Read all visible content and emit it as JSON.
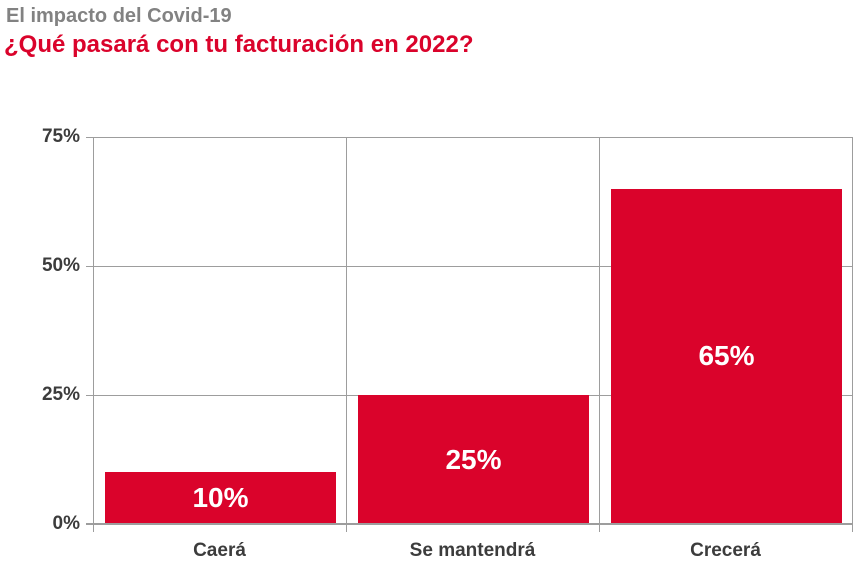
{
  "chart_data": {
    "type": "bar",
    "title": "El impacto del Covid-19",
    "subtitle": "¿Qué pasará con tu facturación en 2022?",
    "categories": [
      "Caerá",
      "Se mantendrá",
      "Crecerá"
    ],
    "values": [
      10,
      25,
      65
    ],
    "value_labels": [
      "10%",
      "25%",
      "65%"
    ],
    "xlabel": "",
    "ylabel": "",
    "ylim": [
      0,
      75
    ],
    "ytick_values": [
      0,
      25,
      50,
      75
    ],
    "ytick_labels": [
      "0%",
      "25%",
      "50%",
      "75%"
    ],
    "grid": true,
    "legend": false,
    "panel_borders": true,
    "colors": {
      "bar": "#da032b",
      "value_label": "#ffffff",
      "title": "#828282",
      "subtitle": "#da032b",
      "axis_text": "#3c3c3c",
      "gridline": "#9d9d9d"
    }
  }
}
